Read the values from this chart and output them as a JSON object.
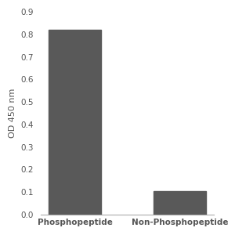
{
  "categories": [
    "Phosphopeptide",
    "Non-Phosphopeptide"
  ],
  "values": [
    0.82,
    0.105
  ],
  "bar_color": "#595959",
  "bar_width": 0.5,
  "ylabel": "OD 450 nm",
  "ylim": [
    0,
    0.9
  ],
  "yticks": [
    0,
    0.1,
    0.2,
    0.3,
    0.4,
    0.5,
    0.6,
    0.7,
    0.8,
    0.9
  ],
  "ylabel_fontsize": 8,
  "tick_fontsize": 7.5,
  "xlabel_fontsize": 7.5,
  "background_color": "#ffffff",
  "axes_background": "#ffffff",
  "tick_color": "#555555",
  "spine_color": "#aaaaaa"
}
